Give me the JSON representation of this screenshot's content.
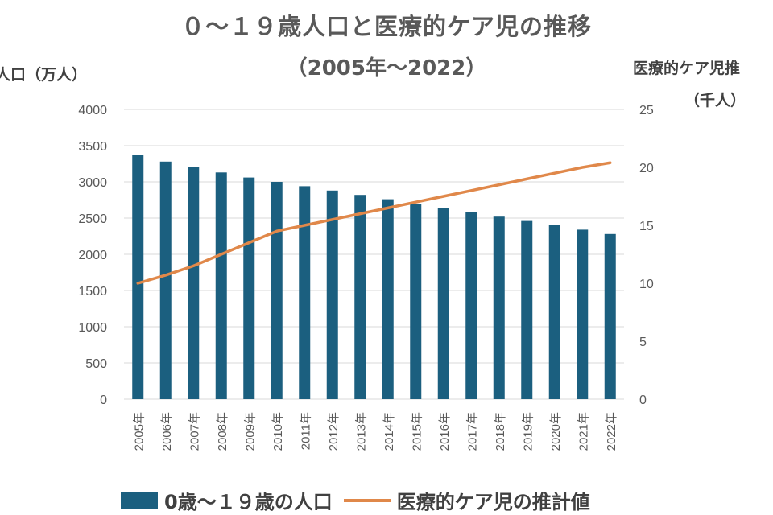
{
  "chart_data": {
    "type": "bar",
    "title": "０～１９歳人口と医療的ケア児の推移",
    "subtitle": "（2005年～2022）",
    "ylabel_left": "人口（万人）",
    "ylabel_right_line1": "医療的ケア児推",
    "ylabel_right_line2": "（千人）",
    "categories": [
      "2005年",
      "2006年",
      "2007年",
      "2008年",
      "2009年",
      "2010年",
      "2011年",
      "2012年",
      "2013年",
      "2014年",
      "2015年",
      "2016年",
      "2017年",
      "2018年",
      "2019年",
      "2020年",
      "2021年",
      "2022年"
    ],
    "ylim_left": [
      0,
      4000
    ],
    "yticks_left": [
      "0",
      "500",
      "1000",
      "1500",
      "2000",
      "2500",
      "3000",
      "3500",
      "4000"
    ],
    "ylim_right": [
      0,
      25
    ],
    "yticks_right": [
      "0",
      "5",
      "10",
      "15",
      "20",
      "25"
    ],
    "grid": true,
    "legend_position": "bottom",
    "series": [
      {
        "name": "0歳～１９歳の人口",
        "type": "bar",
        "axis": "left",
        "color": "#1b5f7f",
        "values": [
          3370,
          3280,
          3200,
          3130,
          3060,
          3000,
          2940,
          2880,
          2820,
          2760,
          2700,
          2640,
          2580,
          2520,
          2460,
          2400,
          2340,
          2280
        ]
      },
      {
        "name": "医療的ケア児の推計値",
        "type": "line",
        "axis": "right",
        "color": "#e0884a",
        "values": [
          10.0,
          10.7,
          11.5,
          12.5,
          13.5,
          14.5,
          15.0,
          15.5,
          16.0,
          16.5,
          17.0,
          17.5,
          18.0,
          18.5,
          19.0,
          19.5,
          20.0,
          20.4
        ]
      }
    ]
  }
}
